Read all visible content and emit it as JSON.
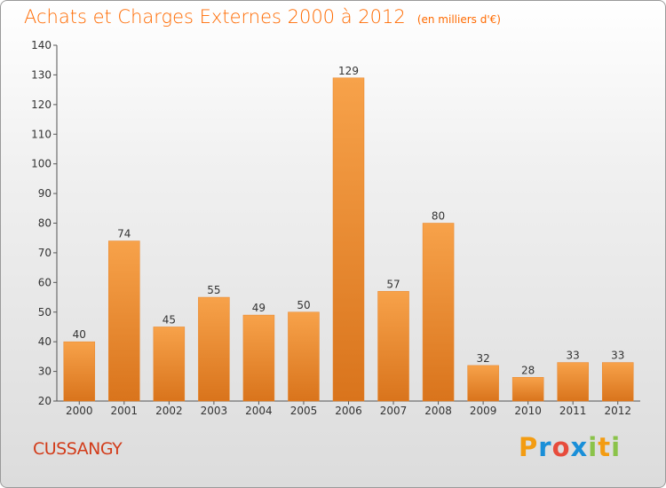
{
  "header": {
    "title": "Achats et Charges Externes 2000 à 2012",
    "subtitle": "(en milliers d'€)"
  },
  "footer": {
    "commune": "CUSSANGY",
    "logo_letters": [
      "P",
      "r",
      "o",
      "x",
      "i",
      "t",
      "i"
    ],
    "logo_colors": [
      "#f39c12",
      "#1a8fd8",
      "#e74c3c",
      "#1a8fd8",
      "#8bc34a",
      "#f39c12",
      "#8bc34a"
    ]
  },
  "chart_data": {
    "type": "bar",
    "categories": [
      "2000",
      "2001",
      "2002",
      "2003",
      "2004",
      "2005",
      "2006",
      "2007",
      "2008",
      "2009",
      "2010",
      "2011",
      "2012"
    ],
    "values": [
      40,
      74,
      45,
      55,
      49,
      50,
      129,
      57,
      80,
      32,
      28,
      33,
      33
    ],
    "data_labels": [
      "40",
      "74",
      "45",
      "55",
      "49",
      "50",
      "129",
      "57",
      "80",
      "32",
      "28",
      "33",
      "33"
    ],
    "title": "Achats et Charges Externes 2000 à 2012",
    "xlabel": "",
    "ylabel": "",
    "ylim": [
      20,
      140
    ],
    "yticks": [
      20,
      30,
      40,
      50,
      60,
      70,
      80,
      90,
      100,
      110,
      120,
      130,
      140
    ],
    "grid": false,
    "bar_color": "#f2902f"
  }
}
